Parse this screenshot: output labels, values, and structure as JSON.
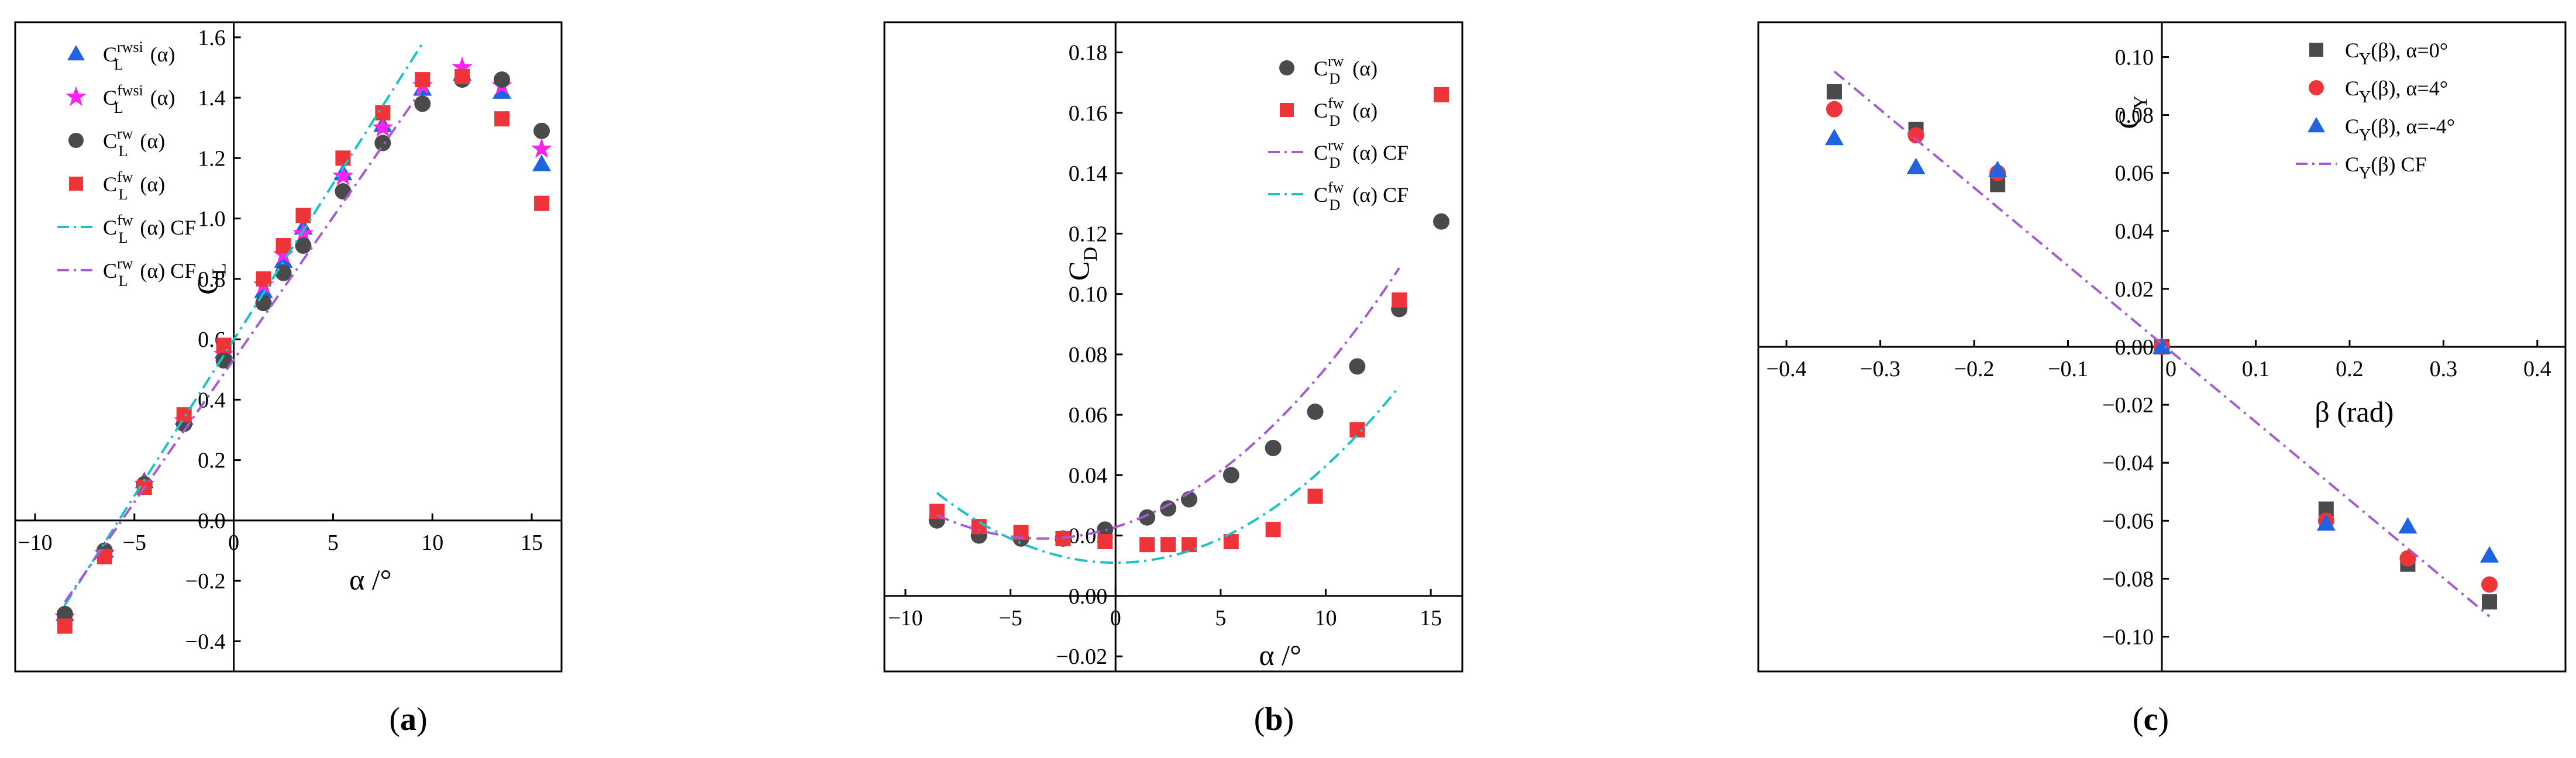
{
  "figure": {
    "colors": {
      "blue": "#1f63e0",
      "magenta": "#ff22ee",
      "gray": "#4a4a4a",
      "red": "#ee3339",
      "cyan": "#19c2c6",
      "purple": "#a55bd6"
    }
  },
  "chart_data": [
    {
      "id": "a",
      "type": "scatter",
      "caption": "(a)",
      "xlabel": "α /°",
      "ylabel": {
        "main": "C",
        "sub": "L"
      },
      "xlim": [
        -11,
        16.5
      ],
      "ylim": [
        -0.5,
        1.65
      ],
      "xticks": [
        -10,
        -5,
        0,
        5,
        10,
        15
      ],
      "xtick_labels": [
        "−10",
        "−5",
        "0",
        "5",
        "10",
        "15"
      ],
      "yticks": [
        -0.4,
        -0.2,
        0.2,
        0.4,
        0.6,
        0.8,
        1.0,
        1.2,
        1.4,
        1.6
      ],
      "ytick_labels": [
        "−0.4",
        "−0.2",
        "0.2",
        "0.4",
        "0.6",
        "0.8",
        "1.0",
        "1.2",
        "1.4",
        "1.6"
      ],
      "origin_label": "0.0",
      "legend_position": "top-left",
      "series": [
        {
          "name": "CLrwsi(α)",
          "legend": {
            "main": "C",
            "sub": "L",
            "sup": "rwsi",
            "suffix": " (α)"
          },
          "marker": "triangle",
          "color": "blue",
          "x": [
            -8.5,
            -6.5,
            -4.5,
            -2.5,
            -0.5,
            1.5,
            2.5,
            3.5,
            5.5,
            7.5,
            9.5,
            11.5,
            13.5,
            15.5
          ],
          "y": [
            -0.31,
            -0.1,
            0.13,
            0.34,
            0.56,
            0.76,
            0.86,
            0.97,
            1.15,
            1.31,
            1.43,
            1.48,
            1.42,
            1.18
          ]
        },
        {
          "name": "CLfwsi(α)",
          "legend": {
            "main": "C",
            "sub": "L",
            "sup": "fwsi",
            "suffix": " (α)"
          },
          "marker": "star",
          "color": "magenta",
          "x": [
            -8.5,
            -6.5,
            -4.5,
            -2.5,
            -0.5,
            1.5,
            2.5,
            3.5,
            5.5,
            7.5,
            9.5,
            11.5,
            13.5,
            15.5
          ],
          "y": [
            -0.32,
            -0.11,
            0.12,
            0.33,
            0.55,
            0.78,
            0.88,
            0.95,
            1.14,
            1.3,
            1.44,
            1.5,
            1.44,
            1.23
          ]
        },
        {
          "name": "CLrw(α)",
          "legend": {
            "main": "C",
            "sub": "L",
            "sup": "rw",
            "suffix": " (α)"
          },
          "marker": "circle",
          "color": "gray",
          "x": [
            -8.5,
            -6.5,
            -4.5,
            -2.5,
            -0.5,
            1.5,
            2.5,
            3.5,
            5.5,
            7.5,
            9.5,
            11.5,
            13.5,
            15.5
          ],
          "y": [
            -0.31,
            -0.1,
            0.12,
            0.32,
            0.53,
            0.72,
            0.82,
            0.91,
            1.09,
            1.25,
            1.38,
            1.46,
            1.46,
            1.29
          ]
        },
        {
          "name": "CLfw(α)",
          "legend": {
            "main": "C",
            "sub": "L",
            "sup": "fw",
            "suffix": " (α)"
          },
          "marker": "square",
          "color": "red",
          "x": [
            -8.5,
            -6.5,
            -4.5,
            -2.5,
            -0.5,
            1.5,
            2.5,
            3.5,
            5.5,
            7.5,
            9.5,
            11.5,
            13.5,
            15.5
          ],
          "y": [
            -0.35,
            -0.12,
            0.11,
            0.35,
            0.58,
            0.8,
            0.91,
            1.01,
            1.2,
            1.35,
            1.46,
            1.47,
            1.33,
            1.05
          ]
        },
        {
          "name": "CLfw(α) CF",
          "legend": {
            "main": "C",
            "sub": "L",
            "sup": "fw",
            "suffix": " (α) CF"
          },
          "line": "dashdot",
          "color": "cyan",
          "x": [
            -8.5,
            9.5
          ],
          "y": [
            -0.28,
            1.58
          ]
        },
        {
          "name": "CLrw(α) CF",
          "legend": {
            "main": "C",
            "sub": "L",
            "sup": "rw",
            "suffix": " (α) CF"
          },
          "line": "dashdot",
          "color": "purple",
          "x": [
            -8.5,
            9.5
          ],
          "y": [
            -0.27,
            1.43
          ]
        }
      ]
    },
    {
      "id": "b",
      "type": "scatter",
      "caption": "(b)",
      "xlabel": "α /°",
      "ylabel": {
        "main": "C",
        "sub": "D"
      },
      "xlim": [
        -11,
        16.5
      ],
      "ylim": [
        -0.025,
        0.19
      ],
      "xticks": [
        -10,
        -5,
        0,
        5,
        10,
        15
      ],
      "xtick_labels": [
        "−10",
        "−5",
        "0",
        "5",
        "10",
        "15"
      ],
      "yticks": [
        -0.02,
        0.0,
        0.02,
        0.04,
        0.06,
        0.08,
        0.1,
        0.12,
        0.14,
        0.16,
        0.18
      ],
      "ytick_labels": [
        "−0.02",
        "0.00",
        "0.02",
        "0.04",
        "0.06",
        "0.08",
        "0.10",
        "0.12",
        "0.14",
        "0.16",
        "0.18"
      ],
      "legend_position": "top-center",
      "series": [
        {
          "name": "CDrw(α)",
          "legend": {
            "main": "C",
            "sub": "D",
            "sup": "rw",
            "suffix": " (α)"
          },
          "marker": "circle",
          "color": "gray",
          "x": [
            -8.5,
            -6.5,
            -4.5,
            -2.5,
            -0.5,
            1.5,
            2.5,
            3.5,
            5.5,
            7.5,
            9.5,
            11.5,
            13.5,
            15.5
          ],
          "y": [
            0.025,
            0.02,
            0.019,
            0.019,
            0.022,
            0.026,
            0.029,
            0.032,
            0.04,
            0.049,
            0.061,
            0.076,
            0.095,
            0.124
          ]
        },
        {
          "name": "CDfw(α)",
          "legend": {
            "main": "C",
            "sub": "D",
            "sup": "fw",
            "suffix": " (α)"
          },
          "marker": "square",
          "color": "red",
          "x": [
            -8.5,
            -6.5,
            -4.5,
            -2.5,
            -0.5,
            1.5,
            2.5,
            3.5,
            5.5,
            7.5,
            9.5,
            11.5,
            13.5,
            15.5
          ],
          "y": [
            0.028,
            0.023,
            0.021,
            0.019,
            0.018,
            0.017,
            0.017,
            0.017,
            0.018,
            0.022,
            0.033,
            0.055,
            0.098,
            0.166
          ]
        },
        {
          "name": "CDrw(α) CF",
          "legend": {
            "main": "C",
            "sub": "D",
            "sup": "rw",
            "suffix": " (α) CF"
          },
          "line": "dashdot",
          "color": "purple",
          "curve": {
            "a": 0.00031,
            "x0": -3.5,
            "c": 0.019
          },
          "xrange": [
            -8.5,
            13.5
          ]
        },
        {
          "name": "CDfw(α) CF",
          "legend": {
            "main": "C",
            "sub": "D",
            "sup": "fw",
            "suffix": " (α) CF"
          },
          "line": "dashdot",
          "color": "cyan",
          "curve": {
            "a": 0.00032,
            "x0": 0.0,
            "c": 0.011
          },
          "xrange": [
            -8.5,
            13.5
          ]
        }
      ]
    },
    {
      "id": "c",
      "type": "scatter",
      "caption": "(c)",
      "xlabel": "β (rad)",
      "ylabel": {
        "main": "C",
        "sub": "Y"
      },
      "xlim": [
        -0.43,
        0.43
      ],
      "ylim": [
        -0.112,
        0.112
      ],
      "xticks": [
        -0.4,
        -0.3,
        -0.2,
        -0.1,
        0.1,
        0.2,
        0.3,
        0.4
      ],
      "xtick_labels": [
        "−0.4",
        "−0.3",
        "−0.2",
        "−0.1",
        "0.1",
        "0.2",
        "0.3",
        "0.4"
      ],
      "yticks": [
        -0.1,
        -0.08,
        -0.06,
        -0.04,
        -0.02,
        0.02,
        0.04,
        0.06,
        0.08,
        0.1
      ],
      "ytick_labels": [
        "−0.10",
        "−0.08",
        "−0.06",
        "−0.04",
        "−0.02",
        "0.02",
        "0.04",
        "0.06",
        "0.08",
        "0.10"
      ],
      "origin_labels": [
        "0.00",
        "0"
      ],
      "legend_position": "top-right",
      "series": [
        {
          "name": "CY(β), α=0°",
          "legend": {
            "main": "C",
            "sub": "Y",
            "suffix": "(β), α=0°"
          },
          "marker": "square",
          "color": "gray",
          "x": [
            -0.349,
            -0.262,
            -0.175,
            0.0,
            0.175,
            0.262,
            0.349
          ],
          "y": [
            0.088,
            0.075,
            0.056,
            0.0,
            -0.056,
            -0.075,
            -0.088
          ]
        },
        {
          "name": "CY(β), α=4°",
          "legend": {
            "main": "C",
            "sub": "Y",
            "suffix": "(β), α=4°"
          },
          "marker": "circle",
          "color": "red",
          "x": [
            -0.349,
            -0.262,
            -0.175,
            0.0,
            0.175,
            0.262,
            0.349
          ],
          "y": [
            0.082,
            0.073,
            0.06,
            0.0,
            -0.06,
            -0.073,
            -0.082
          ]
        },
        {
          "name": "CY(β), α=-4°",
          "legend": {
            "main": "C",
            "sub": "Y",
            "suffix": "(β), α=-4°"
          },
          "marker": "triangle",
          "color": "blue",
          "x": [
            -0.349,
            -0.262,
            -0.175,
            0.0,
            0.175,
            0.262,
            0.349
          ],
          "y": [
            0.072,
            0.062,
            0.061,
            0.0,
            -0.061,
            -0.062,
            -0.072
          ]
        },
        {
          "name": "CY(β) CF",
          "legend": {
            "main": "C",
            "sub": "Y",
            "suffix": "(β) CF"
          },
          "line": "dashdot",
          "color": "purple",
          "x": [
            -0.349,
            0.349
          ],
          "y": [
            0.095,
            -0.093
          ]
        }
      ]
    }
  ]
}
